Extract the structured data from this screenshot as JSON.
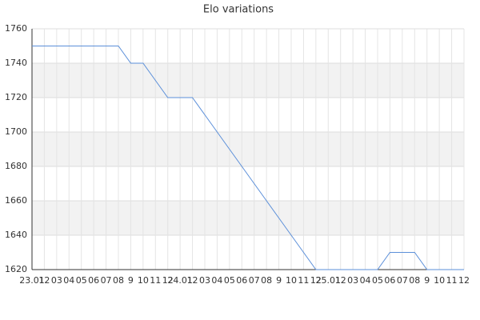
{
  "chart_data": {
    "type": "line",
    "title": "Elo variations",
    "categories": [
      "23.01",
      "12",
      "03",
      "04",
      "05",
      "06",
      "07",
      "08",
      "9",
      "10",
      "11",
      "12",
      "24.01",
      "12",
      "03",
      "04",
      "05",
      "06",
      "07",
      "08",
      "9",
      "10",
      "11",
      "12",
      "25.01",
      "12",
      "03",
      "04",
      "05",
      "06",
      "07",
      "08",
      "9",
      "10",
      "11",
      "12"
    ],
    "series": [
      {
        "name": "Elo",
        "color": "#5b8fd9",
        "values": [
          1750,
          1750,
          1750,
          1750,
          1750,
          1750,
          1750,
          1750,
          1740,
          1740,
          1730,
          1720,
          1720,
          1720,
          1710,
          1700,
          1690,
          1680,
          1670,
          1660,
          1650,
          1640,
          1630,
          1620,
          1620,
          1620,
          1620,
          1620,
          1620,
          1630,
          1630,
          1630,
          1620,
          1620,
          1620,
          1620
        ]
      }
    ],
    "ylim": [
      1620,
      1760
    ],
    "yticks": [
      1620,
      1640,
      1660,
      1680,
      1700,
      1720,
      1740,
      1760
    ],
    "grid": true
  }
}
